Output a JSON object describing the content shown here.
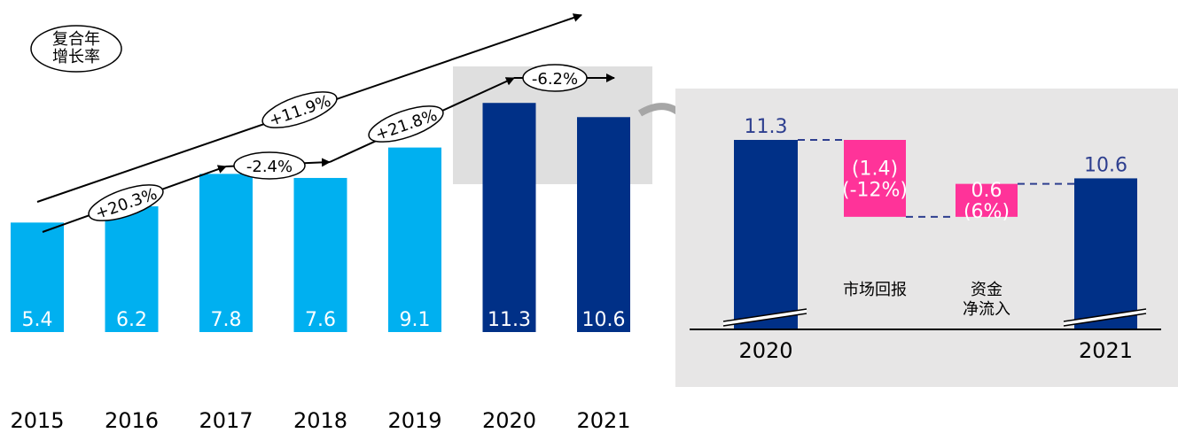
{
  "chart_data": [
    {
      "type": "bar",
      "categories": [
        "2015",
        "2016",
        "2017",
        "2018",
        "2019",
        "2020",
        "2021"
      ],
      "values": [
        5.4,
        6.2,
        7.8,
        7.6,
        9.1,
        11.3,
        10.6
      ],
      "value_labels": [
        "5.4",
        "6.2",
        "7.8",
        "7.6",
        "9.1",
        "11.3",
        "10.6"
      ],
      "colors": [
        "#00B0F0",
        "#00B0F0",
        "#00B0F0",
        "#00B0F0",
        "#00B0F0",
        "#003087",
        "#003087"
      ],
      "ylim": [
        0,
        12
      ],
      "grid": false,
      "legend_title": "复合年\n增长率",
      "growth_annotations": [
        {
          "from": "2015",
          "to": "2021",
          "label": "+11.9%"
        },
        {
          "from": "2015",
          "to": "2017",
          "label": "+20.3%"
        },
        {
          "from": "2017",
          "to": "2018",
          "label": "-2.4%"
        },
        {
          "from": "2018",
          "to": "2020",
          "label": "+21.8%"
        },
        {
          "from": "2020",
          "to": "2021",
          "label": "-6.2%"
        }
      ]
    },
    {
      "type": "bar",
      "subtype": "waterfall",
      "steps": [
        {
          "category": "2020",
          "value": 11.3,
          "label": "11.3",
          "kind": "total",
          "color": "#003087"
        },
        {
          "category": "市场回报",
          "value": -1.4,
          "label": "(1.4)\n(-12%)",
          "kind": "delta",
          "color": "#FF3399"
        },
        {
          "category": "资金\n净流入",
          "value": 0.6,
          "label": "0.6\n(6%)",
          "kind": "delta",
          "color": "#FF3399"
        },
        {
          "category": "2021",
          "value": 10.6,
          "label": "10.6",
          "kind": "total",
          "color": "#003087"
        }
      ],
      "axis_break": true,
      "connector_style": "dashed"
    }
  ]
}
